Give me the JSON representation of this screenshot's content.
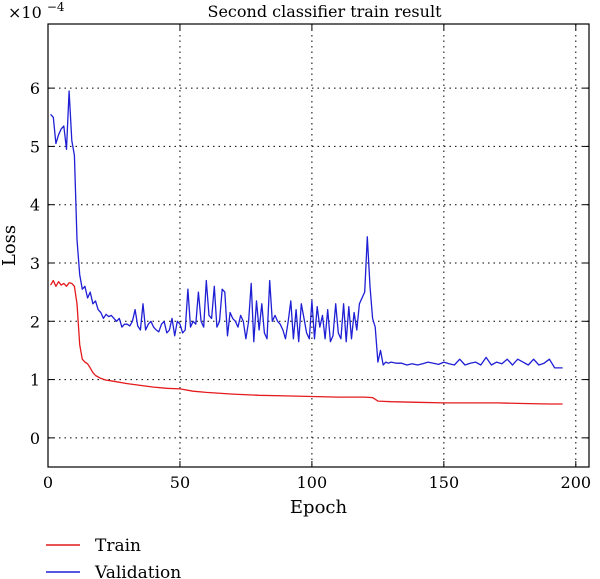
{
  "chart_data": {
    "type": "line",
    "title": "Second classifier train result",
    "xlabel": "Epoch",
    "ylabel": "Loss",
    "y_multiplier": "×10",
    "y_exponent": "−4",
    "xlim": [
      0,
      205
    ],
    "ylim": [
      -0.5,
      7.1
    ],
    "xticks": [
      0,
      50,
      100,
      150,
      200
    ],
    "yticks": [
      0,
      1,
      2,
      3,
      4,
      5,
      6
    ],
    "grid": true,
    "legend_position": "bottom-left",
    "series": [
      {
        "name": "Train",
        "color": "#e41a1c",
        "x": [
          1,
          2,
          3,
          4,
          5,
          6,
          7,
          8,
          9,
          10,
          11,
          12,
          13,
          14,
          15,
          16,
          17,
          18,
          20,
          22,
          25,
          30,
          35,
          40,
          45,
          50,
          55,
          60,
          70,
          80,
          90,
          100,
          110,
          120,
          123,
          125,
          130,
          140,
          150,
          160,
          170,
          180,
          190,
          195
        ],
        "y": [
          2.62,
          2.7,
          2.6,
          2.68,
          2.62,
          2.65,
          2.6,
          2.66,
          2.65,
          2.6,
          2.3,
          1.6,
          1.35,
          1.3,
          1.27,
          1.2,
          1.12,
          1.07,
          1.02,
          0.99,
          0.97,
          0.93,
          0.9,
          0.87,
          0.85,
          0.84,
          0.8,
          0.78,
          0.75,
          0.73,
          0.72,
          0.71,
          0.7,
          0.7,
          0.69,
          0.63,
          0.62,
          0.61,
          0.6,
          0.6,
          0.6,
          0.59,
          0.58,
          0.58
        ]
      },
      {
        "name": "Validation",
        "color": "#1f1fd6",
        "x": [
          1,
          2,
          3,
          4,
          5,
          6,
          7,
          8,
          9,
          10,
          11,
          12,
          13,
          14,
          15,
          16,
          17,
          18,
          19,
          20,
          21,
          22,
          23,
          24,
          25,
          26,
          27,
          28,
          29,
          30,
          31,
          32,
          33,
          34,
          35,
          36,
          37,
          38,
          39,
          40,
          41,
          42,
          43,
          44,
          45,
          46,
          47,
          48,
          49,
          50,
          51,
          52,
          53,
          54,
          55,
          56,
          57,
          58,
          59,
          60,
          61,
          62,
          63,
          64,
          65,
          66,
          67,
          68,
          69,
          70,
          71,
          72,
          73,
          74,
          75,
          76,
          77,
          78,
          79,
          80,
          81,
          82,
          83,
          84,
          85,
          86,
          87,
          88,
          89,
          90,
          91,
          92,
          93,
          94,
          95,
          96,
          97,
          98,
          99,
          100,
          101,
          102,
          103,
          104,
          105,
          106,
          107,
          108,
          109,
          110,
          111,
          112,
          113,
          114,
          115,
          116,
          117,
          118,
          119,
          120,
          121,
          122,
          123,
          124,
          125,
          126,
          127,
          128,
          129,
          130,
          132,
          134,
          136,
          138,
          140,
          142,
          144,
          146,
          148,
          150,
          152,
          154,
          156,
          158,
          160,
          162,
          164,
          166,
          168,
          170,
          172,
          174,
          176,
          178,
          180,
          182,
          184,
          186,
          188,
          190,
          192,
          195
        ],
        "y": [
          5.55,
          5.5,
          5.05,
          5.2,
          5.3,
          5.35,
          4.95,
          5.95,
          5.1,
          4.85,
          3.4,
          2.8,
          2.55,
          2.6,
          2.4,
          2.5,
          2.3,
          2.35,
          2.2,
          2.15,
          2.05,
          2.12,
          2.08,
          2.1,
          2.05,
          2.0,
          2.05,
          1.9,
          1.95,
          1.95,
          1.92,
          2.0,
          2.2,
          1.92,
          1.85,
          2.3,
          1.85,
          1.95,
          2.0,
          1.9,
          1.85,
          1.82,
          1.95,
          2.0,
          1.8,
          1.85,
          2.05,
          1.75,
          2.0,
          1.95,
          1.8,
          1.85,
          2.55,
          1.9,
          2.0,
          1.95,
          2.5,
          2.0,
          1.9,
          2.7,
          2.1,
          2.05,
          2.6,
          1.9,
          2.0,
          2.55,
          2.5,
          1.75,
          2.15,
          2.05,
          2.0,
          1.9,
          2.1,
          2.0,
          1.7,
          2.0,
          2.65,
          1.65,
          2.35,
          1.85,
          2.3,
          1.8,
          1.7,
          2.7,
          2.0,
          2.1,
          2.0,
          1.95,
          1.85,
          1.7,
          2.0,
          2.35,
          1.7,
          2.2,
          1.65,
          2.3,
          2.05,
          1.8,
          1.7,
          2.35,
          1.7,
          2.25,
          1.9,
          2.1,
          1.7,
          2.2,
          1.65,
          1.75,
          2.3,
          1.8,
          1.7,
          2.3,
          1.65,
          2.25,
          1.7,
          2.15,
          1.85,
          2.3,
          2.4,
          2.5,
          3.45,
          2.6,
          2.05,
          1.9,
          1.3,
          1.5,
          1.25,
          1.3,
          1.28,
          1.3,
          1.28,
          1.28,
          1.25,
          1.27,
          1.25,
          1.27,
          1.3,
          1.28,
          1.26,
          1.3,
          1.27,
          1.25,
          1.35,
          1.25,
          1.28,
          1.3,
          1.25,
          1.38,
          1.25,
          1.3,
          1.27,
          1.35,
          1.25,
          1.35,
          1.3,
          1.25,
          1.35,
          1.25,
          1.28,
          1.35,
          1.2,
          1.2
        ]
      }
    ]
  }
}
